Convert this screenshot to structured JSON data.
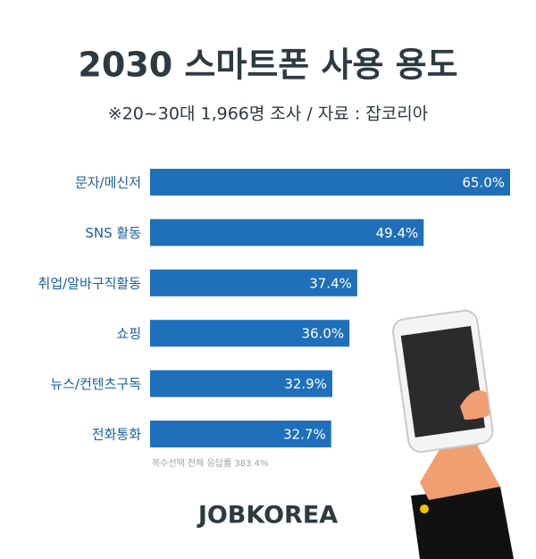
{
  "chart_data": {
    "type": "bar",
    "orientation": "horizontal",
    "title": "2030 스마트폰 사용 용도",
    "subtitle": "※20~30대 1,966명 조사 / 자료 : 잡코리아",
    "categories": [
      "문자/메신저",
      "SNS 활동",
      "취업/알바구직활동",
      "쇼핑",
      "뉴스/컨텐츠구독",
      "전화통화"
    ],
    "values": [
      65.0,
      49.4,
      37.4,
      36.0,
      32.9,
      32.7
    ],
    "value_labels": [
      "65.0%",
      "49.4%",
      "37.4%",
      "36.0%",
      "32.9%",
      "32.7%"
    ],
    "color": "#1f6fba",
    "note": "복수선택 전체 응답률 383.4%",
    "brand": "JOBKOREA"
  }
}
